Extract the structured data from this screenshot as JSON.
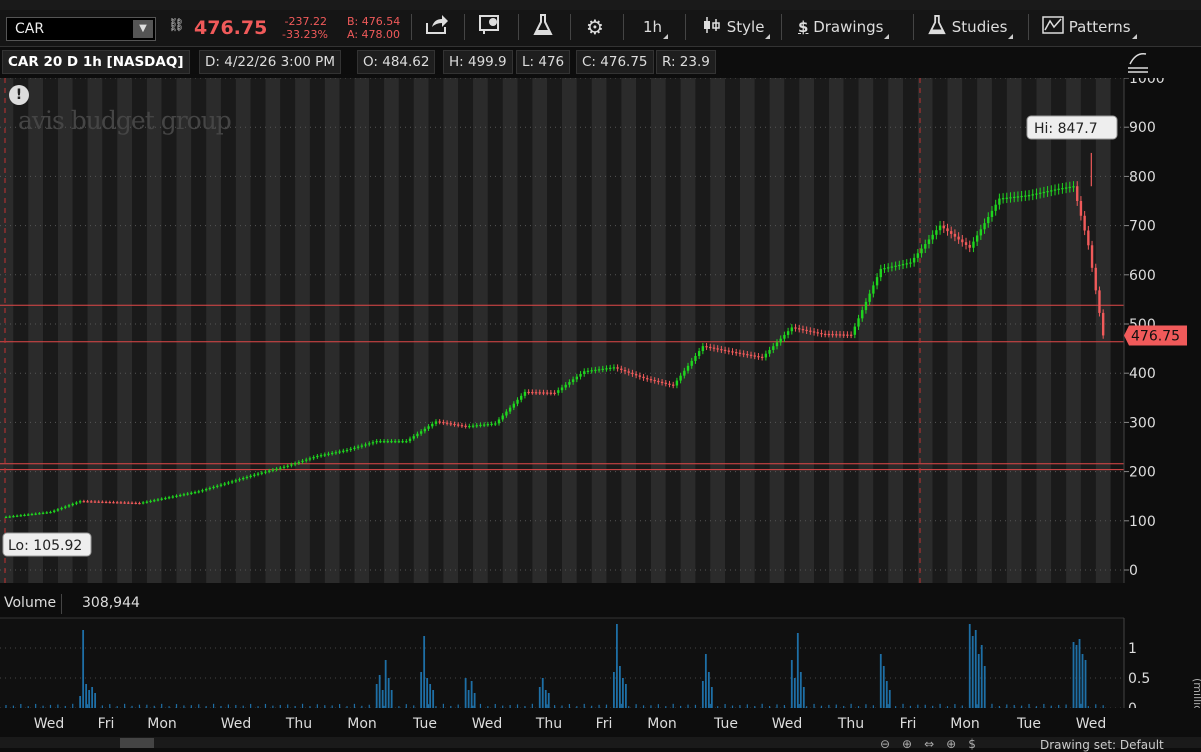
{
  "toolbar": {
    "symbol": "CAR",
    "last_price": "476.75",
    "net_change": "-237.22",
    "pct_change": "-33.23%",
    "bid": "B: 476.54",
    "ask": "A: 478.00",
    "aggregation": "1h",
    "style_label": "Style",
    "drawings_label": "Drawings",
    "studies_label": "Studies",
    "patterns_label": "Patterns",
    "accent_color": "#f05a5a",
    "icons": [
      "link-icon",
      "share-icon",
      "flag-icon",
      "flask-icon",
      "gear-icon"
    ]
  },
  "info_bar": {
    "title": "CAR 20 D 1h [NASDAQ]",
    "date": "D: 4/22/26 3:00 PM",
    "open": "O: 484.62",
    "high": "H: 499.9",
    "low": "L: 476",
    "close": "C: 476.75",
    "range": "R: 23.9"
  },
  "watermark": "avis budget group",
  "volume_panel": {
    "label": "Volume",
    "value": "308,944",
    "axis_unit": "(millions)"
  },
  "bottom_bar": {
    "drawing_set": "Drawing set: Default"
  },
  "chart_data": [
    {
      "type": "candlestick",
      "title": "",
      "ylim": [
        0,
        1000
      ],
      "yticks": [
        0,
        100,
        200,
        300,
        400,
        500,
        600,
        700,
        800,
        900,
        1000
      ],
      "x_day_labels": [
        "Wed",
        "Fri",
        "Mon",
        "Wed",
        "Thu",
        "Mon",
        "Tue",
        "Wed",
        "Thu",
        "Fri",
        "Mon",
        "Tue",
        "Wed",
        "Thu",
        "Fri",
        "Mon",
        "Tue",
        "Wed"
      ],
      "annotations": {
        "high_label": "Hi: 847.7",
        "low_label": "Lo: 105.92",
        "last_label": "476.75",
        "high_value": 847.7,
        "low_value": 105.92,
        "last_value": 476.75
      },
      "horizontal_lines": [
        538,
        464,
        216,
        204
      ],
      "vertical_marker_day": "Fri",
      "close_path": [
        [
          0,
          108
        ],
        [
          3,
          118
        ],
        [
          5,
          140
        ],
        [
          7,
          138
        ],
        [
          9,
          136
        ],
        [
          11,
          148
        ],
        [
          13,
          160
        ],
        [
          15,
          178
        ],
        [
          17,
          196
        ],
        [
          19,
          212
        ],
        [
          21,
          232
        ],
        [
          23,
          244
        ],
        [
          25,
          262
        ],
        [
          27,
          262
        ],
        [
          29,
          302
        ],
        [
          31,
          292
        ],
        [
          33,
          298
        ],
        [
          35,
          362
        ],
        [
          37,
          360
        ],
        [
          39,
          404
        ],
        [
          41,
          412
        ],
        [
          43,
          390
        ],
        [
          45,
          375
        ],
        [
          47,
          455
        ],
        [
          49,
          443
        ],
        [
          51,
          432
        ],
        [
          53,
          493
        ],
        [
          55,
          480
        ],
        [
          57,
          478
        ],
        [
          59,
          612
        ],
        [
          61,
          625
        ],
        [
          63,
          700
        ],
        [
          65,
          655
        ],
        [
          67,
          755
        ],
        [
          69,
          762
        ],
        [
          71,
          775
        ],
        [
          72,
          780
        ],
        [
          73,
          660
        ],
        [
          74,
          476.75
        ]
      ],
      "grid": true,
      "up_color": "#1fd61f",
      "down_color": "#f05a5a"
    },
    {
      "type": "bar",
      "title": "Volume",
      "ylabel": "(millions)",
      "ylim": [
        0,
        1.5
      ],
      "yticks": [
        0,
        0.5,
        1
      ],
      "bar_color": "#1e6fa6",
      "volume_clusters": [
        {
          "x": 5,
          "heights": [
            0.2,
            1.3,
            0.4,
            0.3,
            0.35,
            0.25
          ]
        },
        {
          "x": 25,
          "heights": [
            0.4,
            0.55,
            0.3,
            0.8,
            0.5,
            0.3
          ]
        },
        {
          "x": 28,
          "heights": [
            0.6,
            1.2,
            0.5,
            0.4,
            0.3
          ]
        },
        {
          "x": 31,
          "heights": [
            0.5,
            0.3,
            0.45,
            0.25
          ]
        },
        {
          "x": 36,
          "heights": [
            0.35,
            0.5,
            0.3,
            0.25
          ]
        },
        {
          "x": 41,
          "heights": [
            0.6,
            1.4,
            0.7,
            0.5,
            0.4
          ]
        },
        {
          "x": 47,
          "heights": [
            0.45,
            0.9,
            0.6,
            0.35
          ]
        },
        {
          "x": 53,
          "heights": [
            0.8,
            0.5,
            1.25,
            0.6,
            0.35
          ]
        },
        {
          "x": 59,
          "heights": [
            0.9,
            0.7,
            0.45,
            0.3
          ]
        },
        {
          "x": 65,
          "heights": [
            1.4,
            1.2,
            1.3,
            0.9,
            1.05,
            0.7
          ]
        },
        {
          "x": 72,
          "heights": [
            1.1,
            1.05,
            1.15,
            0.9,
            0.8
          ]
        }
      ]
    }
  ]
}
